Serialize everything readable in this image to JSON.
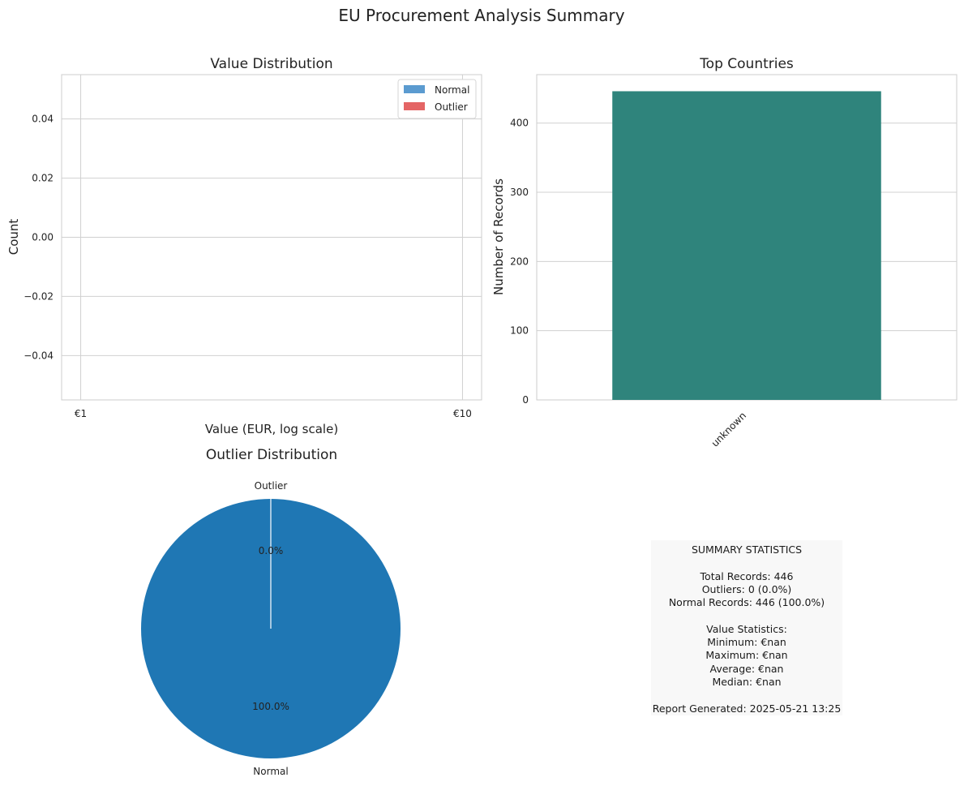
{
  "figure": {
    "suptitle": "EU Procurement Analysis Summary"
  },
  "chart_data": [
    {
      "type": "bar",
      "title": "Value Distribution",
      "xlabel": "Value (EUR, log scale)",
      "ylabel": "Count",
      "x_scale": "log",
      "xlim": [
        1,
        10
      ],
      "xticks": [
        "€1",
        "€10"
      ],
      "ylim": [
        -0.055,
        0.055
      ],
      "yticks": [
        "0.04",
        "0.02",
        "0.00",
        "−0.02",
        "−0.04"
      ],
      "grid": true,
      "legend": "top-right",
      "series": [
        {
          "name": "Normal",
          "color": "#5b9bd0",
          "values": []
        },
        {
          "name": "Outlier",
          "color": "#e46565",
          "values": []
        }
      ]
    },
    {
      "type": "bar",
      "title": "Top Countries",
      "xlabel": "",
      "ylabel": "Number of Records",
      "categories": [
        "unknown"
      ],
      "values": [
        446
      ],
      "ylim": [
        0,
        470
      ],
      "yticks": [
        "0",
        "100",
        "200",
        "300",
        "400"
      ],
      "bar_color": "#2f847c",
      "grid": true
    },
    {
      "type": "pie",
      "title": "Outlier Distribution",
      "slices": [
        {
          "label": "Outlier",
          "value": 0,
          "pct_label": "0.0%",
          "color": "#ff7f0e"
        },
        {
          "label": "Normal",
          "value": 446,
          "pct_label": "100.0%",
          "color": "#1f77b4"
        }
      ]
    }
  ],
  "summary": {
    "heading": "SUMMARY STATISTICS",
    "total_records": "Total Records: 446",
    "outliers": "Outliers: 0 (0.0%)",
    "normal_records": "Normal Records: 446 (100.0%)",
    "value_heading": "Value Statistics:",
    "minimum": "Minimum: €nan",
    "maximum": "Maximum: €nan",
    "average": "Average: €nan",
    "median": "Median: €nan",
    "generated": "Report Generated: 2025-05-21 13:25"
  }
}
